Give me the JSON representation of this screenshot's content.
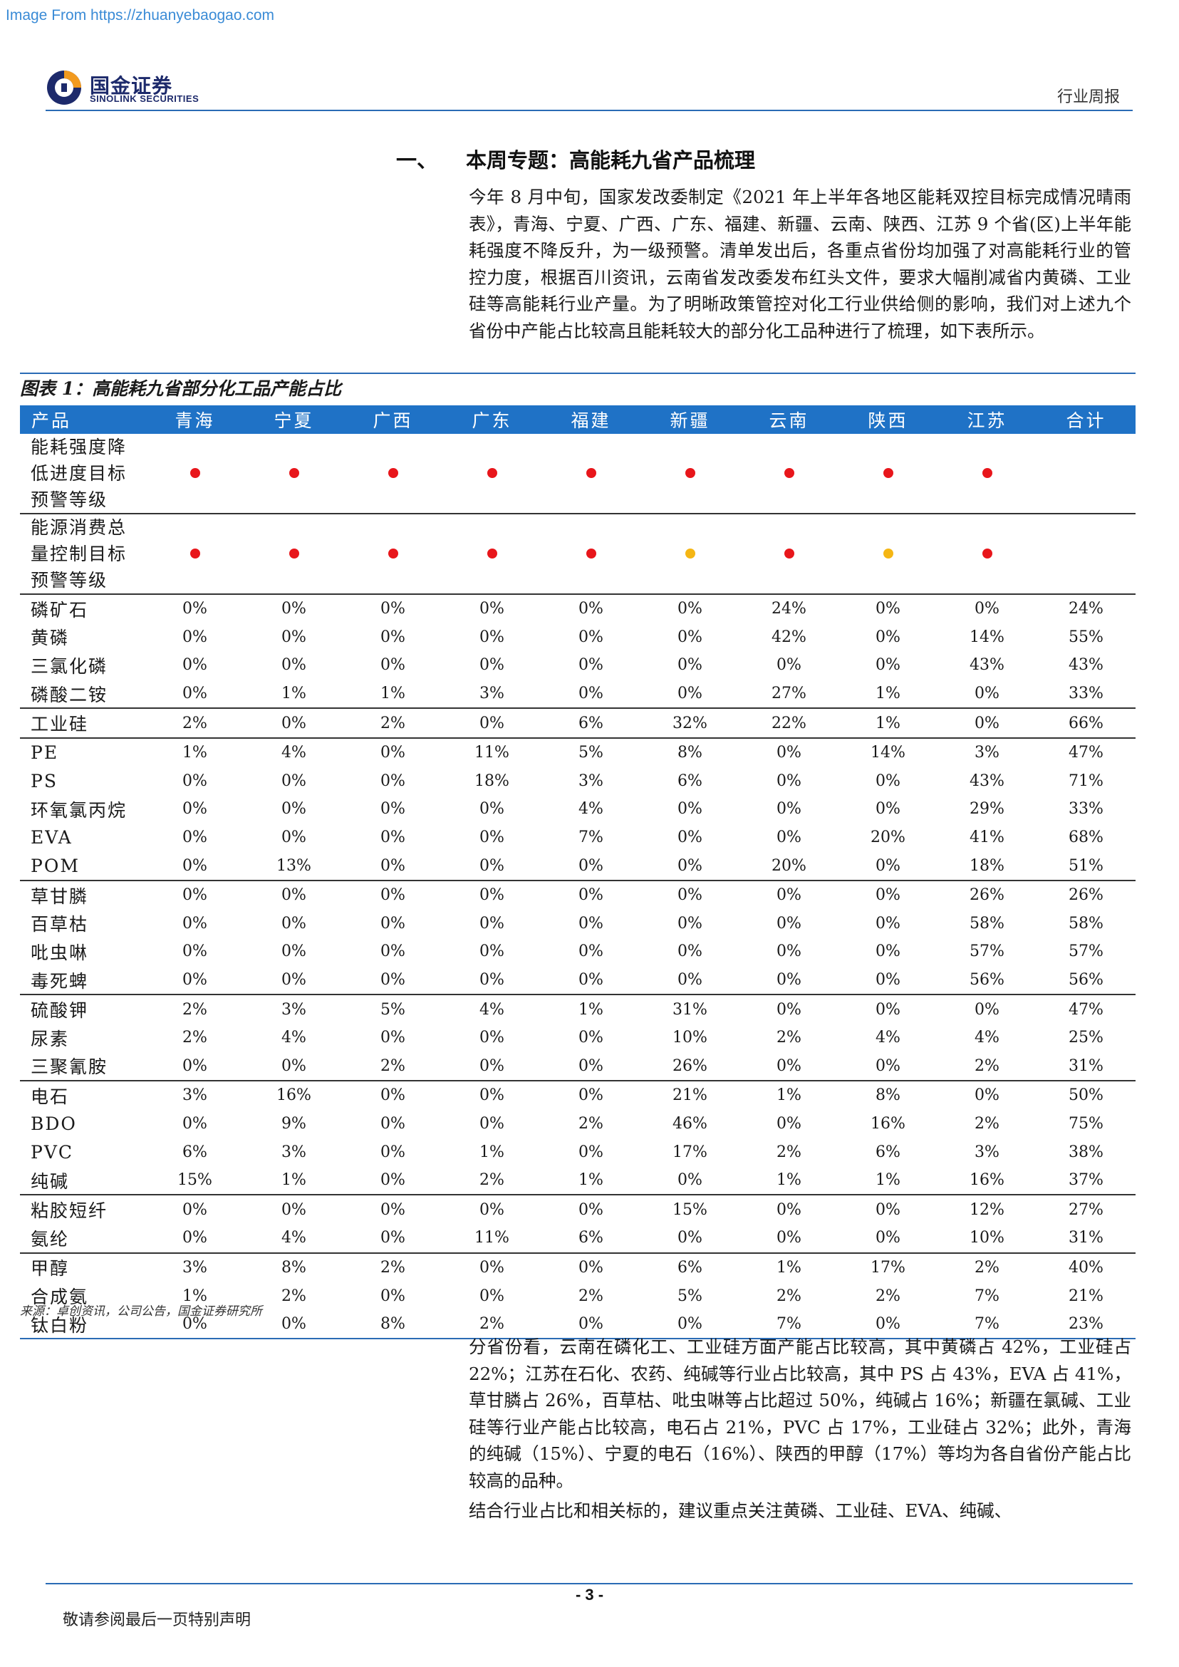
{
  "watermark": "Image From https://zhuanyebaogao.com",
  "header": {
    "logo_cn": "国金证券",
    "logo_en": "SINOLINK SECURITIES",
    "report_type": "行业周报",
    "brand_colors": {
      "primary": "#1d2a6b",
      "accent": "#1f72c6",
      "logo_orange": "#f29a1f"
    }
  },
  "section": {
    "number": "一、",
    "title": "本周专题：高能耗九省产品梳理"
  },
  "intro": "今年 8 月中旬，国家发改委制定《2021 年上半年各地区能耗双控目标完成情况晴雨表》，青海、宁夏、广西、广东、福建、新疆、云南、陕西、江苏 9 个省(区)上半年能耗强度不降反升，为一级预警。清单发出后，各重点省份均加强了对高能耗行业的管控力度，根据百川资讯，云南省发改委发布红头文件，要求大幅削减省内黄磷、工业硅等高能耗行业产量。为了明晰政策管控对化工行业供给侧的影响，我们对上述九个省份中产能占比较高且能耗较大的部分化工品种进行了梳理，如下表所示。",
  "table": {
    "title": "图表 1：高能耗九省部分化工品产能占比",
    "headers": [
      "产品",
      "青海",
      "宁夏",
      "广西",
      "广东",
      "福建",
      "新疆",
      "云南",
      "陕西",
      "江苏",
      "合计"
    ],
    "dot_colors": {
      "red": "#e8161b",
      "yellow": "#f5b614"
    },
    "warning_rows": [
      {
        "label": "能耗强度降低进度目标预警等级",
        "dots": [
          "red",
          "red",
          "red",
          "red",
          "red",
          "red",
          "red",
          "red",
          "red"
        ]
      },
      {
        "label": "能源消费总量控制目标预警等级",
        "dots": [
          "red",
          "red",
          "red",
          "red",
          "red",
          "yellow",
          "red",
          "yellow",
          "red"
        ]
      }
    ],
    "groups": [
      [
        [
          "磷矿石",
          "0%",
          "0%",
          "0%",
          "0%",
          "0%",
          "0%",
          "24%",
          "0%",
          "0%",
          "24%"
        ],
        [
          "黄磷",
          "0%",
          "0%",
          "0%",
          "0%",
          "0%",
          "0%",
          "42%",
          "0%",
          "14%",
          "55%"
        ],
        [
          "三氯化磷",
          "0%",
          "0%",
          "0%",
          "0%",
          "0%",
          "0%",
          "0%",
          "0%",
          "43%",
          "43%"
        ],
        [
          "磷酸二铵",
          "0%",
          "1%",
          "1%",
          "3%",
          "0%",
          "0%",
          "27%",
          "1%",
          "0%",
          "33%"
        ]
      ],
      [
        [
          "工业硅",
          "2%",
          "0%",
          "2%",
          "0%",
          "6%",
          "32%",
          "22%",
          "1%",
          "0%",
          "66%"
        ]
      ],
      [
        [
          "PE",
          "1%",
          "4%",
          "0%",
          "11%",
          "5%",
          "8%",
          "0%",
          "14%",
          "3%",
          "47%"
        ],
        [
          "PS",
          "0%",
          "0%",
          "0%",
          "18%",
          "3%",
          "6%",
          "0%",
          "0%",
          "43%",
          "71%"
        ],
        [
          "环氧氯丙烷",
          "0%",
          "0%",
          "0%",
          "0%",
          "4%",
          "0%",
          "0%",
          "0%",
          "29%",
          "33%"
        ],
        [
          "EVA",
          "0%",
          "0%",
          "0%",
          "0%",
          "7%",
          "0%",
          "0%",
          "20%",
          "41%",
          "68%"
        ],
        [
          "POM",
          "0%",
          "13%",
          "0%",
          "0%",
          "0%",
          "0%",
          "20%",
          "0%",
          "18%",
          "51%"
        ]
      ],
      [
        [
          "草甘膦",
          "0%",
          "0%",
          "0%",
          "0%",
          "0%",
          "0%",
          "0%",
          "0%",
          "26%",
          "26%"
        ],
        [
          "百草枯",
          "0%",
          "0%",
          "0%",
          "0%",
          "0%",
          "0%",
          "0%",
          "0%",
          "58%",
          "58%"
        ],
        [
          "吡虫啉",
          "0%",
          "0%",
          "0%",
          "0%",
          "0%",
          "0%",
          "0%",
          "0%",
          "57%",
          "57%"
        ],
        [
          "毒死蜱",
          "0%",
          "0%",
          "0%",
          "0%",
          "0%",
          "0%",
          "0%",
          "0%",
          "56%",
          "56%"
        ]
      ],
      [
        [
          "硫酸钾",
          "2%",
          "3%",
          "5%",
          "4%",
          "1%",
          "31%",
          "0%",
          "0%",
          "0%",
          "47%"
        ],
        [
          "尿素",
          "2%",
          "4%",
          "0%",
          "0%",
          "0%",
          "10%",
          "2%",
          "4%",
          "4%",
          "25%"
        ],
        [
          "三聚氰胺",
          "0%",
          "0%",
          "2%",
          "0%",
          "0%",
          "26%",
          "0%",
          "0%",
          "2%",
          "31%"
        ]
      ],
      [
        [
          "电石",
          "3%",
          "16%",
          "0%",
          "0%",
          "0%",
          "21%",
          "1%",
          "8%",
          "0%",
          "50%"
        ],
        [
          "BDO",
          "0%",
          "9%",
          "0%",
          "0%",
          "2%",
          "46%",
          "0%",
          "16%",
          "2%",
          "75%"
        ],
        [
          "PVC",
          "6%",
          "3%",
          "0%",
          "1%",
          "0%",
          "17%",
          "2%",
          "6%",
          "3%",
          "38%"
        ],
        [
          "纯碱",
          "15%",
          "1%",
          "0%",
          "2%",
          "1%",
          "0%",
          "1%",
          "1%",
          "16%",
          "37%"
        ]
      ],
      [
        [
          "粘胶短纤",
          "0%",
          "0%",
          "0%",
          "0%",
          "0%",
          "15%",
          "0%",
          "0%",
          "12%",
          "27%"
        ],
        [
          "氨纶",
          "0%",
          "4%",
          "0%",
          "11%",
          "6%",
          "0%",
          "0%",
          "0%",
          "10%",
          "31%"
        ]
      ],
      [
        [
          "甲醇",
          "3%",
          "8%",
          "2%",
          "0%",
          "0%",
          "6%",
          "1%",
          "17%",
          "2%",
          "40%"
        ],
        [
          "合成氨",
          "1%",
          "2%",
          "0%",
          "0%",
          "2%",
          "5%",
          "2%",
          "2%",
          "7%",
          "21%"
        ],
        [
          "钛白粉",
          "0%",
          "0%",
          "8%",
          "2%",
          "0%",
          "0%",
          "7%",
          "0%",
          "7%",
          "23%"
        ]
      ]
    ],
    "source": "来源：卓创资讯，公司公告，国金证券研究所"
  },
  "analysis": "分省份看，云南在磷化工、工业硅方面产能占比较高，其中黄磷占 42%，工业硅占 22%；江苏在石化、农药、纯碱等行业占比较高，其中 PS 占 43%，EVA 占 41%，草甘膦占 26%，百草枯、吡虫啉等占比超过 50%，纯碱占 16%；新疆在氯碱、工业硅等行业产能占比较高，电石占 21%，PVC 占 17%，工业硅占 32%；此外，青海的纯碱（15%）、宁夏的电石（16%）、陕西的甲醇（17%）等均为各自省份产能占比较高的品种。",
  "conclusion": "结合行业占比和相关标的，建议重点关注黄磷、工业硅、EVA、纯碱、",
  "footer": {
    "page_number": "- 3 -",
    "disclaimer": "敬请参阅最后一页特别声明"
  }
}
